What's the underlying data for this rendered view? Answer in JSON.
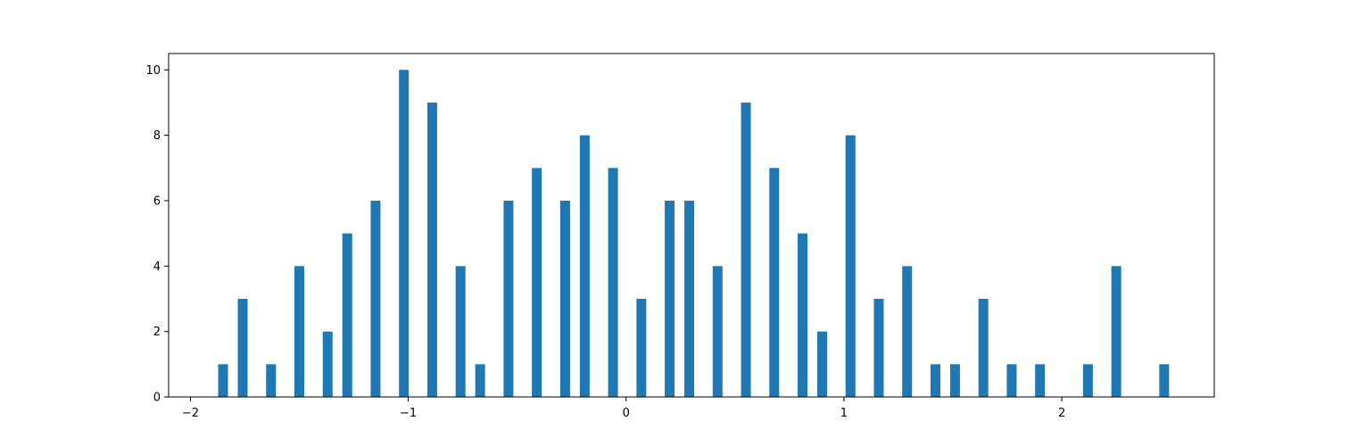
{
  "chart_data": {
    "type": "bar",
    "title": "",
    "xlabel": "",
    "ylabel": "",
    "xlim": [
      -2.1,
      2.7
    ],
    "ylim": [
      0,
      10.5
    ],
    "xticks": [
      -2,
      -1,
      0,
      1,
      2
    ],
    "xtick_labels": [
      "−2",
      "−1",
      "0",
      "1",
      "2"
    ],
    "yticks": [
      0,
      2,
      4,
      6,
      8,
      10
    ],
    "ytick_labels": [
      "0",
      "2",
      "4",
      "6",
      "8",
      "10"
    ],
    "grid": false,
    "bar_color": "#1f77b4",
    "bar_width": 0.045,
    "x": [
      -1.85,
      -1.76,
      -1.63,
      -1.5,
      -1.37,
      -1.28,
      -1.15,
      -1.02,
      -0.89,
      -0.76,
      -0.67,
      -0.54,
      -0.41,
      -0.28,
      -0.19,
      -0.06,
      0.07,
      0.2,
      0.29,
      0.42,
      0.55,
      0.68,
      0.81,
      0.9,
      1.03,
      1.16,
      1.29,
      1.42,
      1.51,
      1.64,
      1.77,
      1.9,
      2.12,
      2.25,
      2.47
    ],
    "values": [
      1,
      3,
      1,
      4,
      2,
      5,
      6,
      10,
      9,
      4,
      1,
      6,
      7,
      6,
      8,
      7,
      3,
      6,
      6,
      4,
      9,
      7,
      5,
      2,
      8,
      3,
      4,
      1,
      1,
      3,
      1,
      1,
      1,
      4,
      1
    ]
  }
}
